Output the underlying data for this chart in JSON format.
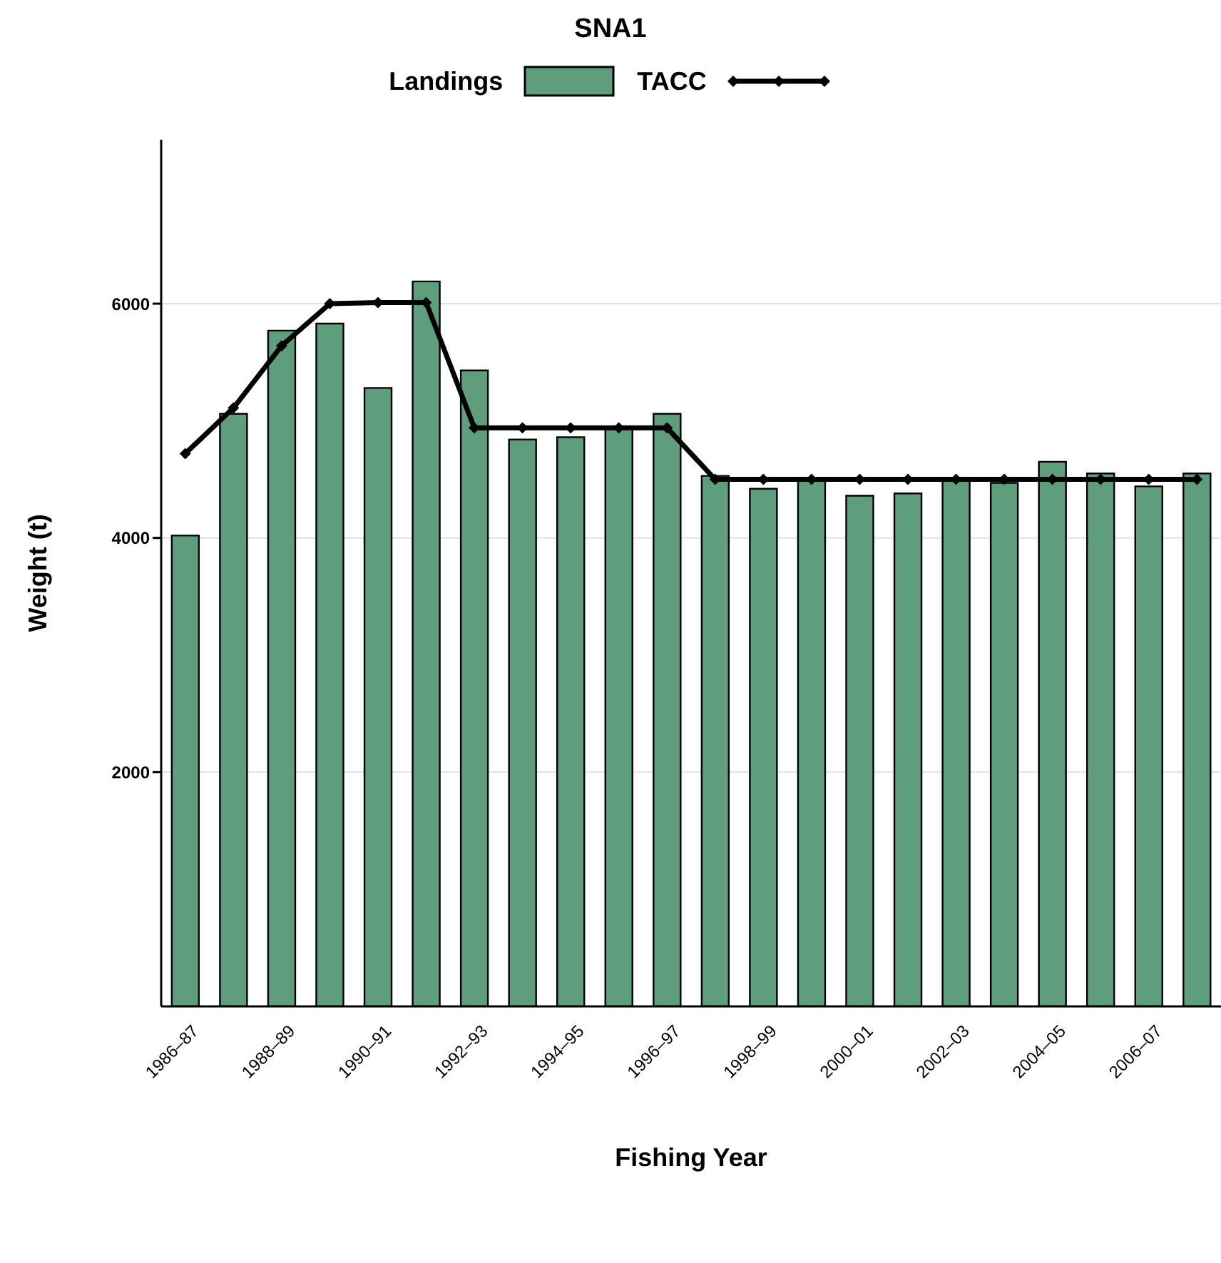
{
  "chart_data": {
    "type": "bar",
    "title": "SNA1",
    "xlabel": "Fishing Year",
    "ylabel": "Weight (t)",
    "categories": [
      "1986–87",
      null,
      "1988–89",
      null,
      "1990–91",
      null,
      "1992–93",
      null,
      "1994–95",
      null,
      "1996–97",
      null,
      "1998–99",
      null,
      "2000–01",
      null,
      "2002–03",
      null,
      "2004–05",
      null,
      "2006–07",
      null
    ],
    "series": [
      {
        "name": "Landings",
        "color": "#5e9e7d",
        "values": [
          4020,
          5060,
          5770,
          5830,
          5280,
          6190,
          5430,
          4840,
          4860,
          4940,
          5060,
          4530,
          4420,
          4510,
          4360,
          4380,
          4500,
          4470,
          4650,
          4550,
          4440,
          4550
        ]
      },
      {
        "name": "TACC",
        "type": "line",
        "color": "#000000",
        "values": [
          4720,
          5110,
          5640,
          6000,
          6010,
          6010,
          4940,
          4940,
          4940,
          4940,
          4940,
          4500,
          4500,
          4500,
          4500,
          4500,
          4500,
          4500,
          4500,
          4500,
          4500,
          4500
        ]
      }
    ],
    "ylim": [
      0,
      7400
    ],
    "yticks": [
      2000,
      4000,
      6000
    ],
    "grid": "y",
    "legend": "top",
    "marker": "diamond",
    "line_style": "solid"
  }
}
